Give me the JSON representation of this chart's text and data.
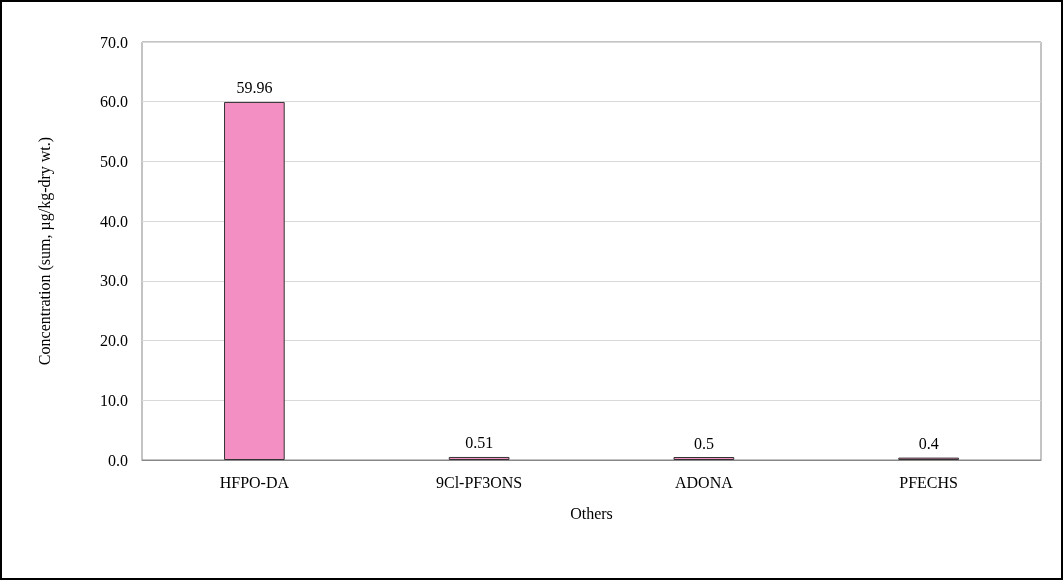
{
  "chart_data": {
    "type": "bar",
    "xlabel": "Others",
    "ylabel": "Concentration (sum, µg/kg-dry wt.)",
    "categories": [
      "HFPO-DA",
      "9Cl-PF3ONS",
      "ADONA",
      "PFECHS"
    ],
    "values": [
      59.96,
      0.51,
      0.5,
      0.4
    ],
    "color": "#f48fc4",
    "ylim": [
      0,
      70
    ],
    "yticks": [
      {
        "value": 0,
        "label": "0.0"
      },
      {
        "value": 10,
        "label": "10.0"
      },
      {
        "value": 20,
        "label": "20.0"
      },
      {
        "value": 30,
        "label": "30.0"
      },
      {
        "value": 40,
        "label": "40.0"
      },
      {
        "value": 50,
        "label": "50.0"
      },
      {
        "value": 60,
        "label": "60.0"
      },
      {
        "value": 70,
        "label": "70.0"
      }
    ],
    "grid": "y",
    "data_labels": true
  }
}
